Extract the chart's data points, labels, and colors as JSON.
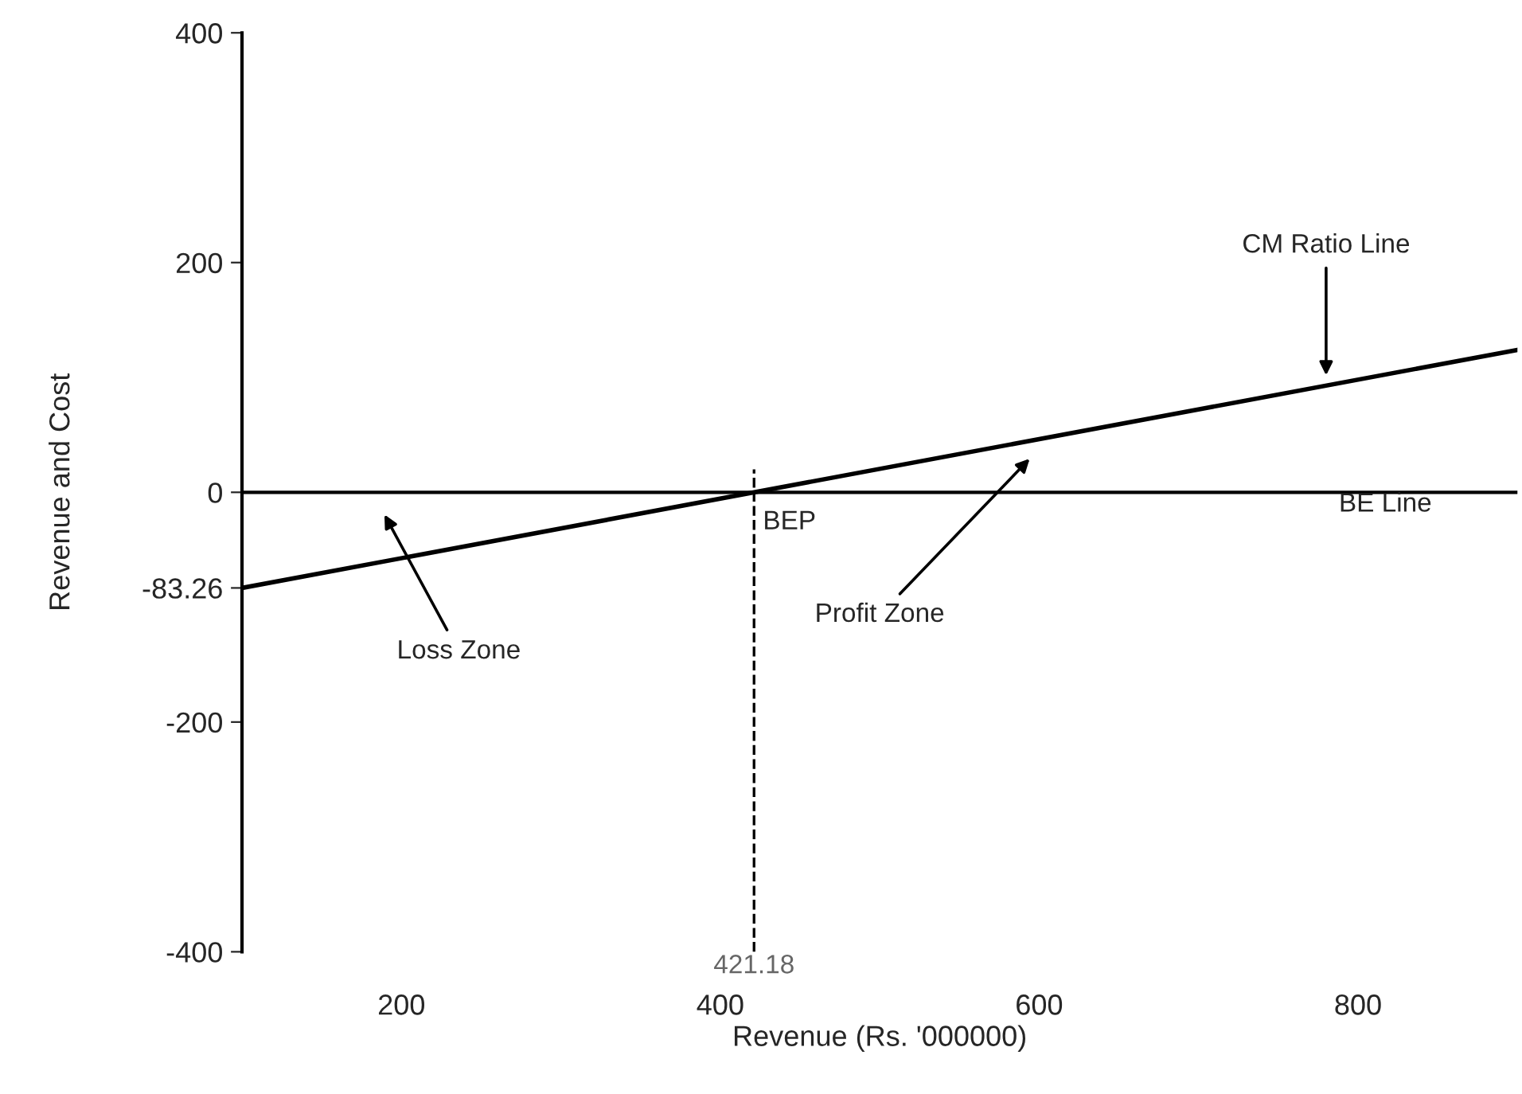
{
  "chart_data": {
    "type": "line",
    "xlabel": "Revenue (Rs. '000000)",
    "ylabel": "Revenue and Cost",
    "x": [
      100,
      900
    ],
    "series": [
      {
        "color": "#000000",
        "values": [
          -83.26,
          124
        ]
      }
    ],
    "xlim": [
      100,
      900
    ],
    "xticks": [
      200,
      400,
      600,
      800
    ],
    "ylim": [
      -400,
      400
    ],
    "yticks": [
      -400,
      -200,
      -83.26,
      0,
      200,
      400
    ],
    "ref_lines": [
      {
        "axis": "y",
        "value": 0,
        "label": "BE Line",
        "color": "#000000",
        "line_style": "solid"
      },
      {
        "axis": "x",
        "value": 421.18,
        "label": "421.18",
        "color": "#000000",
        "line_style": "dashed"
      }
    ],
    "annotations": [
      {
        "text": "BEP",
        "x": 421.18,
        "y": 0
      },
      {
        "text": "CM Ratio Line",
        "x": 780,
        "y": 98
      },
      "Profit Zone",
      "Loss Zone"
    ],
    "grid": false,
    "legend": false,
    "marker": "none",
    "line_style": "solid"
  }
}
